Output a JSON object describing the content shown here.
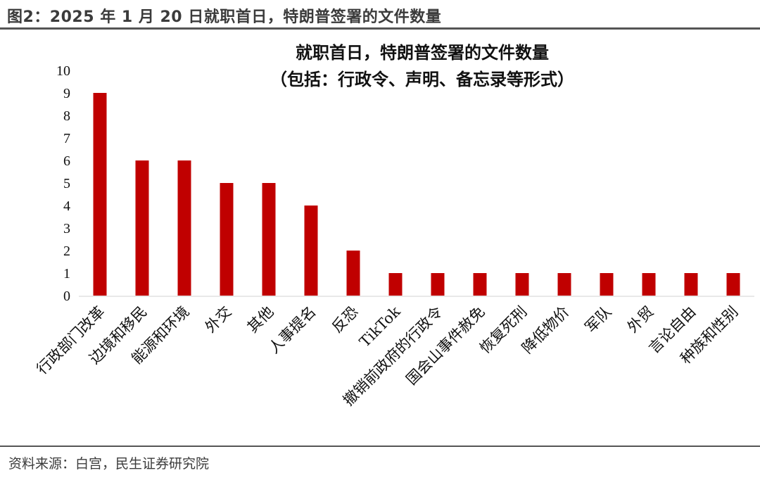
{
  "header": {
    "figure_title": "图2：2025 年 1 月 20 日就职首日，特朗普签署的文件数量"
  },
  "footer": {
    "source": "资料来源：白宫，民生证券研究院"
  },
  "colors": {
    "bar": "#C00000",
    "rule": "#555555",
    "text": "#111111"
  },
  "chart_data": {
    "type": "bar",
    "title": "就职首日，特朗普签署的文件数量",
    "subtitle": "（包括：行政令、声明、备忘录等形式）",
    "xlabel": "",
    "ylabel": "",
    "ylim": [
      0,
      10
    ],
    "yticks": [
      0,
      1,
      2,
      3,
      4,
      5,
      6,
      7,
      8,
      9,
      10
    ],
    "grid": false,
    "legend": "none",
    "categories": [
      "行政部门改革",
      "边境和移民",
      "能源和环境",
      "外交",
      "其他",
      "人事提名",
      "反恐",
      "TikTok",
      "撤销前政府的行政令",
      "国会山事件赦免",
      "恢复死刑",
      "降低物价",
      "军队",
      "外贸",
      "言论自由",
      "种族和性别"
    ],
    "values": [
      9,
      6,
      6,
      5,
      5,
      4,
      2,
      1,
      1,
      1,
      1,
      1,
      1,
      1,
      1,
      1
    ]
  }
}
